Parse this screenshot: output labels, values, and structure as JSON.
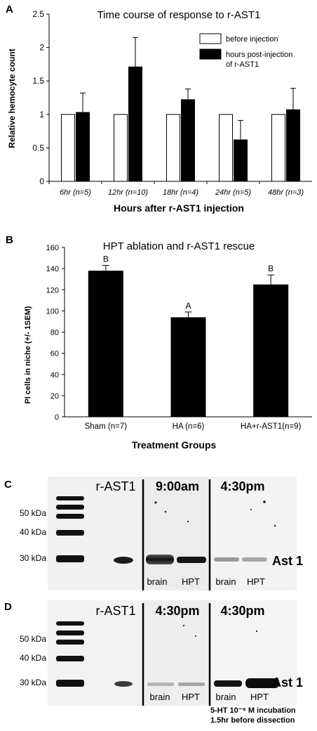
{
  "panels": {
    "A": {
      "letter": "A",
      "chart_data": {
        "type": "bar",
        "title": "Time course of response to r-AST1",
        "xlabel": "Hours after r-AST1 injection",
        "ylabel": "Relative hemocyte count",
        "ylim": [
          0,
          2.5
        ],
        "yticks": [
          "0",
          "0.5",
          "1",
          "1.5",
          "2",
          "2.5"
        ],
        "categories": [
          "6hr (n=5)",
          "12hr (n=10)",
          "18hr (n=4)",
          "24hr (n=5)",
          "48hr (n=3)"
        ],
        "series": [
          {
            "name": "before injection",
            "color": "#ffffff",
            "values": [
              1,
              1,
              1,
              1,
              1
            ],
            "errors": [
              0,
              0,
              0,
              0,
              0
            ]
          },
          {
            "name": "hours post-injection of r-AST1",
            "color": "#000000",
            "values": [
              1.03,
              1.71,
              1.22,
              0.62,
              1.07
            ],
            "errors": [
              0.29,
              0.44,
              0.16,
              0.29,
              0.32
            ]
          }
        ],
        "legend": [
          {
            "line1": "before injection",
            "line2": "",
            "color": "#ffffff"
          },
          {
            "line1": "hours post-injection",
            "line2": "of r-AST1",
            "color": "#000000"
          }
        ],
        "legend_position": "top-right",
        "grid": false
      }
    },
    "B": {
      "letter": "B",
      "chart_data": {
        "type": "bar",
        "title": "HPT ablation and r-AST1 rescue",
        "xlabel": "Treatment Groups",
        "ylabel": "PI cells in niche (+/- 1SEM)",
        "ylim": [
          0,
          160
        ],
        "yticks": [
          "0",
          "20",
          "40",
          "60",
          "80",
          "100",
          "120",
          "140",
          "160"
        ],
        "categories": [
          "Sham (n=7)",
          "HA (n=6)",
          "HA+r-AST1(n=9)"
        ],
        "values": [
          138,
          94,
          125
        ],
        "errors": [
          5,
          5,
          9
        ],
        "significance": [
          "B",
          "A",
          "B"
        ],
        "bar_color": "#000000",
        "grid": false
      }
    },
    "C": {
      "letter": "C",
      "markers": [
        "50 kDa",
        "40 kDa",
        "30 kDa"
      ],
      "header_rast1": "r-AST1",
      "header_mid": "9:00am",
      "header_right": "4:30pm",
      "band_label": "Ast 1",
      "lane_labels": [
        "brain",
        "HPT",
        "brain",
        "HPT"
      ]
    },
    "D": {
      "letter": "D",
      "markers": [
        "50 kDa",
        "40 kDa",
        "30 kDa"
      ],
      "header_rast1": "r-AST1",
      "header_mid": "4:30pm",
      "header_right": "4:30pm",
      "band_label": "Ast 1",
      "lane_labels": [
        "brain",
        "HPT",
        "brain",
        "HPT"
      ],
      "footnote_line1": "5-HT 10⁻⁹ M incubation",
      "footnote_line2": "1.5hr before dissection"
    }
  }
}
